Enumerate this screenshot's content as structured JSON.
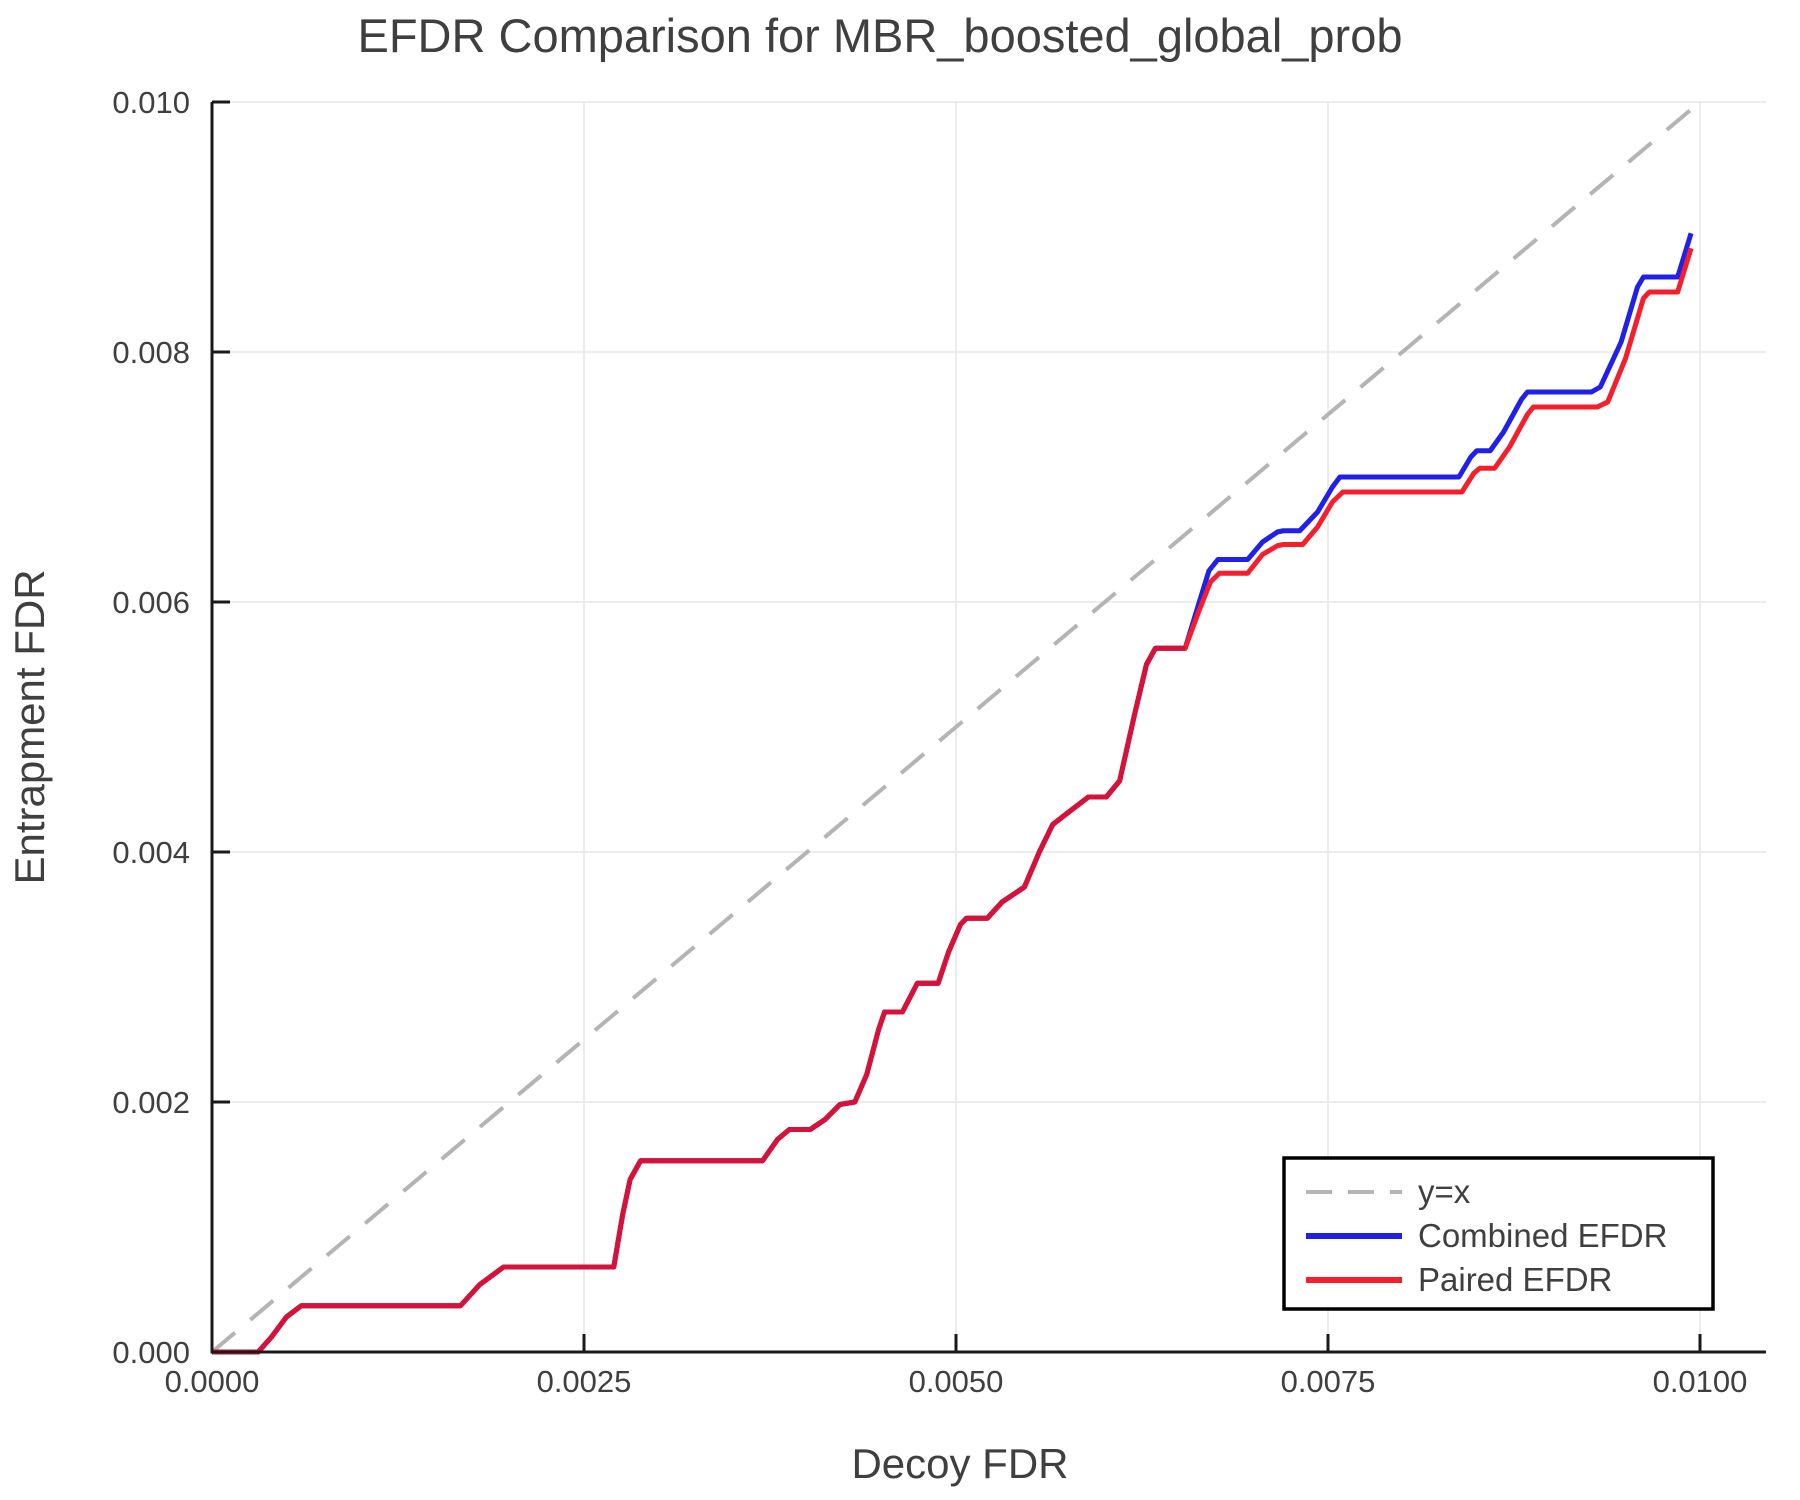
{
  "chart_data": {
    "type": "line",
    "title": "EFDR Comparison for MBR_boosted_global_prob",
    "xlabel": "Decoy FDR",
    "ylabel": "Entrapment FDR",
    "xlim": [
      0,
      0.01044
    ],
    "ylim": [
      0,
      0.01
    ],
    "grid": true,
    "x_ticks": [
      0.0,
      0.0025,
      0.005,
      0.0075,
      0.01
    ],
    "x_tick_labels": [
      "0.0000",
      "0.0025",
      "0.0050",
      "0.0075",
      "0.0100"
    ],
    "y_ticks": [
      0.0,
      0.002,
      0.004,
      0.006,
      0.008,
      0.01
    ],
    "y_tick_labels": [
      "0.000",
      "0.002",
      "0.004",
      "0.006",
      "0.008",
      "0.010"
    ],
    "legend_position": "lower right",
    "colors": {
      "identity": "#b4b4b4",
      "combined": "#2020e8",
      "paired": "#f51e2c",
      "overlap": "#d4123a",
      "grid": "#e7e7e7",
      "spine": "#1a1a1a",
      "text": "#3f3f3f",
      "legend_border": "#000000"
    },
    "shared_point_count": 41,
    "series": [
      {
        "name": "y=x",
        "style": "dashed",
        "points": [
          [
            0.0,
            0.0
          ],
          [
            0.00998,
            0.00998
          ]
        ]
      },
      {
        "name": "Combined EFDR",
        "style": "solid",
        "points": [
          [
            0.0,
            0.0
          ],
          [
            0.00031,
            0.0
          ],
          [
            0.0004,
            0.00012
          ],
          [
            0.0005,
            0.00028
          ],
          [
            0.0006,
            0.00037
          ],
          [
            0.00167,
            0.00037
          ],
          [
            0.0018,
            0.00054
          ],
          [
            0.00196,
            0.00068
          ],
          [
            0.0027,
            0.00068
          ],
          [
            0.00276,
            0.0011
          ],
          [
            0.00281,
            0.00138
          ],
          [
            0.00288,
            0.00153
          ],
          [
            0.0037,
            0.00153
          ],
          [
            0.0038,
            0.0017
          ],
          [
            0.00388,
            0.00178
          ],
          [
            0.00402,
            0.00178
          ],
          [
            0.00412,
            0.00186
          ],
          [
            0.00422,
            0.00198
          ],
          [
            0.00432,
            0.002
          ],
          [
            0.0044,
            0.00222
          ],
          [
            0.00448,
            0.00258
          ],
          [
            0.00452,
            0.00272
          ],
          [
            0.00464,
            0.00272
          ],
          [
            0.00474,
            0.00295
          ],
          [
            0.00488,
            0.00295
          ],
          [
            0.00495,
            0.0032
          ],
          [
            0.00503,
            0.00342
          ],
          [
            0.00507,
            0.00347
          ],
          [
            0.00521,
            0.00347
          ],
          [
            0.00531,
            0.0036
          ],
          [
            0.00546,
            0.00372
          ],
          [
            0.00556,
            0.004
          ],
          [
            0.00565,
            0.00422
          ],
          [
            0.00578,
            0.00434
          ],
          [
            0.00589,
            0.00444
          ],
          [
            0.00601,
            0.00444
          ],
          [
            0.0061,
            0.00457
          ],
          [
            0.0062,
            0.0051
          ],
          [
            0.00628,
            0.0055
          ],
          [
            0.00634,
            0.00563
          ],
          [
            0.00654,
            0.00563
          ],
          [
            0.00663,
            0.00598
          ],
          [
            0.0067,
            0.00625
          ],
          [
            0.00676,
            0.00634
          ],
          [
            0.00696,
            0.00634
          ],
          [
            0.00706,
            0.00648
          ],
          [
            0.00716,
            0.00656
          ],
          [
            0.0072,
            0.00657
          ],
          [
            0.00731,
            0.00657
          ],
          [
            0.00743,
            0.00672
          ],
          [
            0.00753,
            0.00692
          ],
          [
            0.00758,
            0.007
          ],
          [
            0.00838,
            0.007
          ],
          [
            0.00846,
            0.00716
          ],
          [
            0.0085,
            0.00721
          ],
          [
            0.00859,
            0.00721
          ],
          [
            0.00868,
            0.00736
          ],
          [
            0.0088,
            0.00762
          ],
          [
            0.00884,
            0.00768
          ],
          [
            0.00927,
            0.00768
          ],
          [
            0.00933,
            0.00772
          ],
          [
            0.00947,
            0.00808
          ],
          [
            0.00958,
            0.00852
          ],
          [
            0.00962,
            0.0086
          ],
          [
            0.00985,
            0.0086
          ],
          [
            0.00994,
            0.00895
          ]
        ]
      },
      {
        "name": "Paired EFDR",
        "style": "solid",
        "points": [
          [
            0.0,
            0.0
          ],
          [
            0.00031,
            0.0
          ],
          [
            0.0004,
            0.00012
          ],
          [
            0.0005,
            0.00028
          ],
          [
            0.0006,
            0.00037
          ],
          [
            0.00167,
            0.00037
          ],
          [
            0.0018,
            0.00054
          ],
          [
            0.00196,
            0.00068
          ],
          [
            0.0027,
            0.00068
          ],
          [
            0.00276,
            0.0011
          ],
          [
            0.00281,
            0.00138
          ],
          [
            0.00288,
            0.00153
          ],
          [
            0.0037,
            0.00153
          ],
          [
            0.0038,
            0.0017
          ],
          [
            0.00388,
            0.00178
          ],
          [
            0.00402,
            0.00178
          ],
          [
            0.00412,
            0.00186
          ],
          [
            0.00422,
            0.00198
          ],
          [
            0.00432,
            0.002
          ],
          [
            0.0044,
            0.00222
          ],
          [
            0.00448,
            0.00258
          ],
          [
            0.00452,
            0.00272
          ],
          [
            0.00464,
            0.00272
          ],
          [
            0.00474,
            0.00295
          ],
          [
            0.00488,
            0.00295
          ],
          [
            0.00495,
            0.0032
          ],
          [
            0.00503,
            0.00342
          ],
          [
            0.00507,
            0.00347
          ],
          [
            0.00521,
            0.00347
          ],
          [
            0.00531,
            0.0036
          ],
          [
            0.00546,
            0.00372
          ],
          [
            0.00556,
            0.004
          ],
          [
            0.00565,
            0.00422
          ],
          [
            0.00578,
            0.00434
          ],
          [
            0.00589,
            0.00444
          ],
          [
            0.00601,
            0.00444
          ],
          [
            0.0061,
            0.00457
          ],
          [
            0.0062,
            0.0051
          ],
          [
            0.00628,
            0.0055
          ],
          [
            0.00634,
            0.00563
          ],
          [
            0.00654,
            0.00563
          ],
          [
            0.00663,
            0.00592
          ],
          [
            0.00671,
            0.00616
          ],
          [
            0.00677,
            0.00623
          ],
          [
            0.00696,
            0.00623
          ],
          [
            0.00706,
            0.00638
          ],
          [
            0.00716,
            0.00645
          ],
          [
            0.0072,
            0.00646
          ],
          [
            0.00733,
            0.00646
          ],
          [
            0.00743,
            0.0066
          ],
          [
            0.00753,
            0.0068
          ],
          [
            0.0076,
            0.00688
          ],
          [
            0.0084,
            0.00688
          ],
          [
            0.00848,
            0.00703
          ],
          [
            0.00852,
            0.00707
          ],
          [
            0.00862,
            0.00707
          ],
          [
            0.00872,
            0.00724
          ],
          [
            0.00884,
            0.0075
          ],
          [
            0.00888,
            0.00756
          ],
          [
            0.00931,
            0.00756
          ],
          [
            0.00938,
            0.0076
          ],
          [
            0.0095,
            0.00795
          ],
          [
            0.00962,
            0.00843
          ],
          [
            0.00966,
            0.00848
          ],
          [
            0.00985,
            0.00848
          ],
          [
            0.00994,
            0.00883
          ]
        ]
      }
    ]
  }
}
